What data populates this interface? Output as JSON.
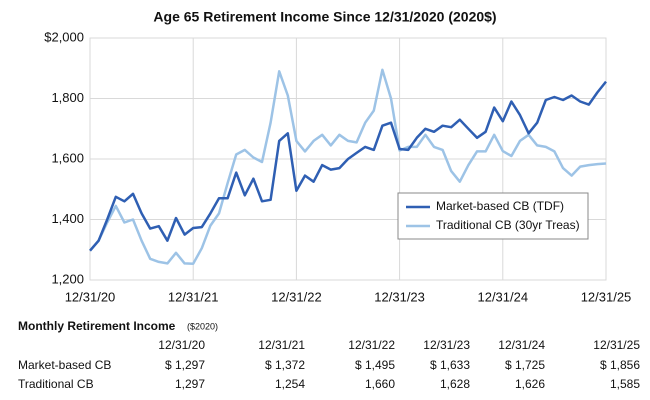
{
  "chart_data": {
    "type": "line",
    "title": "Age 65 Retirement Income Since 12/31/2020 (2020$)",
    "categories": [
      "12/31/20",
      null,
      null,
      null,
      null,
      null,
      null,
      null,
      null,
      null,
      null,
      null,
      "12/31/21",
      null,
      null,
      null,
      null,
      null,
      null,
      null,
      null,
      null,
      null,
      null,
      "12/31/22",
      null,
      null,
      null,
      null,
      null,
      null,
      null,
      null,
      null,
      null,
      null,
      "12/31/23",
      null,
      null,
      null,
      null,
      null,
      null,
      null,
      null,
      null,
      null,
      null,
      "12/31/24",
      null,
      null,
      null,
      null,
      null,
      null,
      null,
      null,
      null,
      null,
      null,
      "12/31/25"
    ],
    "series": [
      {
        "name": "Market-based CB (TDF)",
        "color": "#2f5fb3",
        "values": [
          1297,
          1330,
          1400,
          1475,
          1460,
          1485,
          1420,
          1370,
          1378,
          1330,
          1405,
          1350,
          1372,
          1375,
          1420,
          1470,
          1470,
          1555,
          1480,
          1535,
          1460,
          1465,
          1660,
          1685,
          1495,
          1545,
          1525,
          1580,
          1565,
          1570,
          1600,
          1620,
          1640,
          1630,
          1710,
          1720,
          1633,
          1630,
          1670,
          1700,
          1690,
          1710,
          1705,
          1730,
          1700,
          1670,
          1690,
          1770,
          1725,
          1790,
          1745,
          1685,
          1720,
          1795,
          1805,
          1795,
          1810,
          1790,
          1780,
          1820,
          1856
        ]
      },
      {
        "name": "Traditional CB (30yr Treas)",
        "color": "#9dc3e6",
        "values": [
          1297,
          1330,
          1390,
          1445,
          1390,
          1400,
          1330,
          1270,
          1260,
          1255,
          1290,
          1255,
          1254,
          1305,
          1380,
          1420,
          1520,
          1615,
          1630,
          1605,
          1590,
          1720,
          1890,
          1810,
          1660,
          1625,
          1660,
          1680,
          1645,
          1680,
          1660,
          1655,
          1720,
          1760,
          1895,
          1800,
          1628,
          1640,
          1640,
          1680,
          1640,
          1630,
          1560,
          1525,
          1580,
          1625,
          1625,
          1680,
          1626,
          1610,
          1660,
          1680,
          1645,
          1640,
          1625,
          1570,
          1545,
          1575,
          1580,
          1583,
          1585
        ]
      }
    ],
    "ylim": [
      1200,
      2000
    ],
    "yticks": [
      {
        "value": 1200,
        "label": "1,200"
      },
      {
        "value": 1400,
        "label": "1,400"
      },
      {
        "value": 1600,
        "label": "1,600"
      },
      {
        "value": 1800,
        "label": "1,800"
      },
      {
        "value": 2000,
        "label": "$2,000"
      }
    ],
    "grid": true,
    "legend": "center right"
  },
  "table": {
    "title": "Monthly Retirement Income",
    "subtitle": "($2020)",
    "columns": [
      "12/31/20",
      "12/31/21",
      "12/31/22",
      "12/31/23",
      "12/31/24",
      "12/31/25"
    ],
    "rows": [
      {
        "label": "Market-based CB",
        "values": [
          "$ 1,297",
          "$ 1,372",
          "$ 1,495",
          "$ 1,633",
          "$ 1,725",
          "$ 1,856"
        ]
      },
      {
        "label": "Traditional CB",
        "values": [
          "1,297",
          "1,254",
          "1,660",
          "1,628",
          "1,626",
          "1,585"
        ]
      }
    ]
  }
}
